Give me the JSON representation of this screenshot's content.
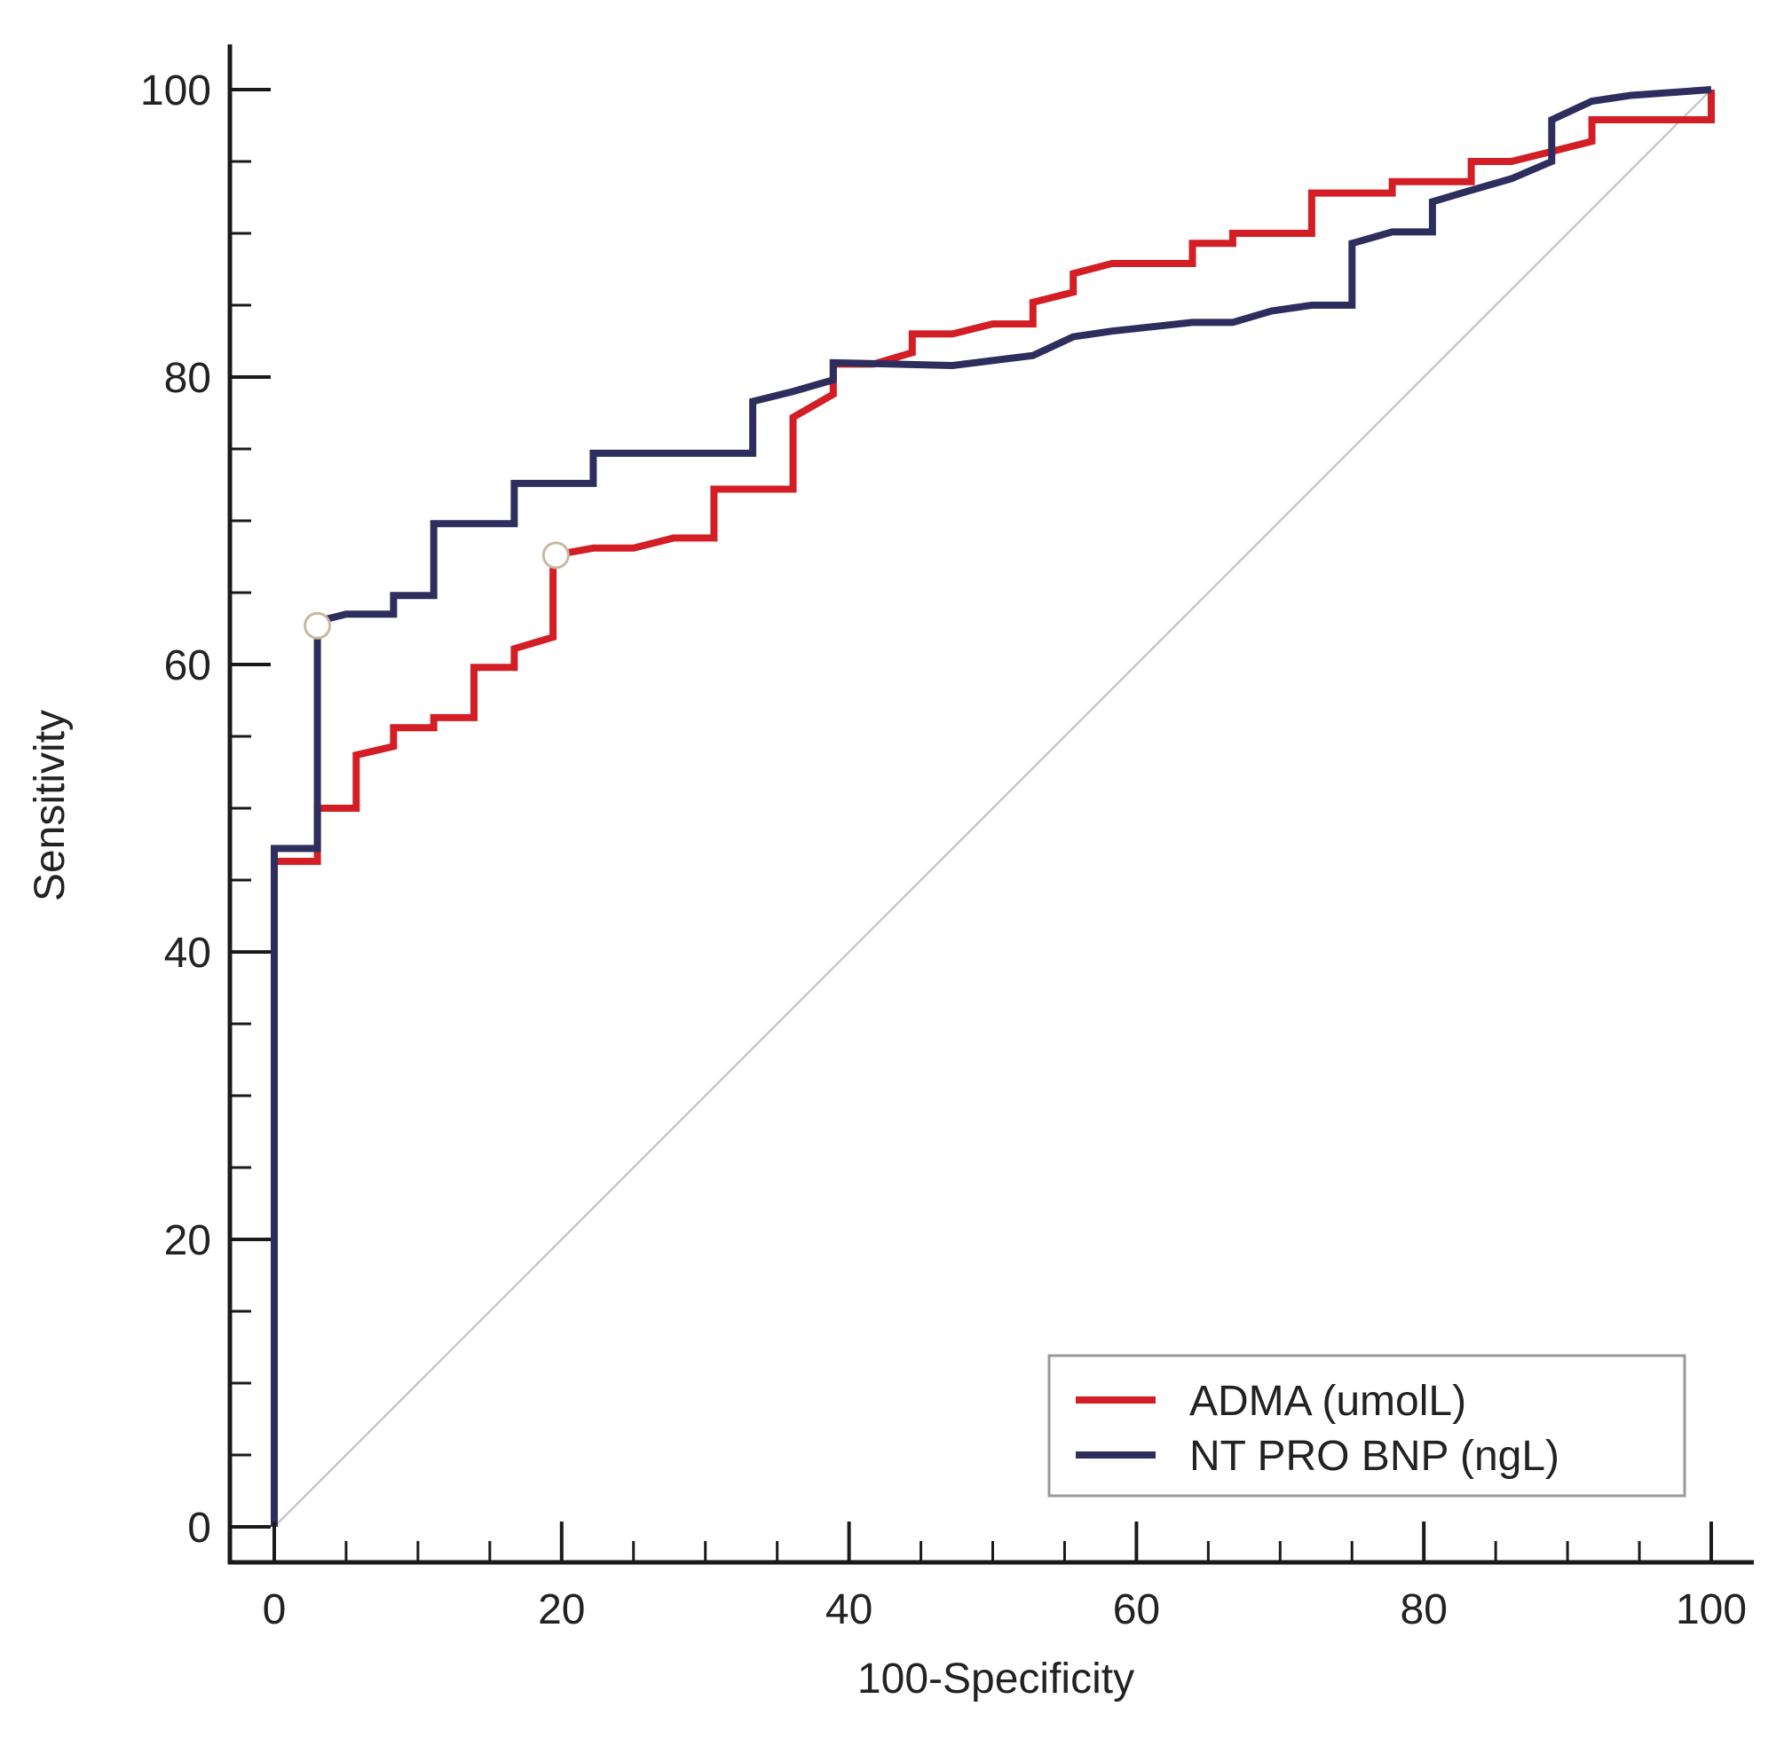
{
  "chart_data": {
    "type": "line",
    "title": "",
    "xlabel": "100-Specificity",
    "ylabel": "Sensitivity",
    "xlim": [
      0,
      100
    ],
    "ylim": [
      0,
      100
    ],
    "x_ticks": [
      "0",
      "20",
      "40",
      "60",
      "80",
      "100"
    ],
    "y_ticks": [
      "0",
      "20",
      "40",
      "60",
      "80",
      "100"
    ],
    "grid": false,
    "legend_position": "bottom-right",
    "reference_line": {
      "from": [
        0,
        0
      ],
      "to": [
        100,
        100
      ],
      "color": "#c8c8c8"
    },
    "series": [
      {
        "name": "ADMA (umolL)",
        "color": "#d21e24",
        "points": [
          [
            0,
            0
          ],
          [
            0,
            46.3
          ],
          [
            3,
            46.3
          ],
          [
            3,
            50
          ],
          [
            5.7,
            50
          ],
          [
            5.7,
            53.7
          ],
          [
            7,
            54
          ],
          [
            8.3,
            54.3
          ],
          [
            8.3,
            55.6
          ],
          [
            11.1,
            55.6
          ],
          [
            11.1,
            56.3
          ],
          [
            13.9,
            56.3
          ],
          [
            13.9,
            59.8
          ],
          [
            16.7,
            59.8
          ],
          [
            16.7,
            61.1
          ],
          [
            19.4,
            61.9
          ],
          [
            19.4,
            67.6
          ],
          [
            22.2,
            68.1
          ],
          [
            25,
            68.1
          ],
          [
            27.8,
            68.8
          ],
          [
            30.6,
            68.8
          ],
          [
            30.6,
            72.2
          ],
          [
            36.1,
            72.2
          ],
          [
            36.1,
            77.2
          ],
          [
            38.9,
            78.8
          ],
          [
            38.9,
            80.9
          ],
          [
            41.7,
            80.9
          ],
          [
            44.4,
            81.7
          ],
          [
            44.4,
            83
          ],
          [
            47.2,
            83
          ],
          [
            50,
            83.7
          ],
          [
            52.8,
            83.7
          ],
          [
            52.8,
            85.2
          ],
          [
            55.6,
            85.9
          ],
          [
            55.6,
            87.2
          ],
          [
            58.3,
            87.9
          ],
          [
            63.9,
            87.9
          ],
          [
            63.9,
            89.3
          ],
          [
            66.7,
            89.3
          ],
          [
            66.7,
            90
          ],
          [
            72.2,
            90
          ],
          [
            72.2,
            92.8
          ],
          [
            77.8,
            92.8
          ],
          [
            77.8,
            93.6
          ],
          [
            83.3,
            93.6
          ],
          [
            83.3,
            95
          ],
          [
            86.1,
            95
          ],
          [
            88.9,
            95.7
          ],
          [
            91.7,
            96.4
          ],
          [
            91.7,
            97.9
          ],
          [
            100,
            97.9
          ],
          [
            100,
            100
          ]
        ]
      },
      {
        "name": "NT PRO BNP (ngL)",
        "color": "#2e2e5e",
        "points": [
          [
            0,
            0
          ],
          [
            0,
            47.2
          ],
          [
            3,
            47.2
          ],
          [
            3,
            63
          ],
          [
            5,
            63.5
          ],
          [
            8.3,
            63.5
          ],
          [
            8.3,
            64.8
          ],
          [
            11.1,
            64.8
          ],
          [
            11.1,
            69.8
          ],
          [
            16.7,
            69.8
          ],
          [
            16.7,
            72.6
          ],
          [
            22.2,
            72.6
          ],
          [
            22.2,
            74.7
          ],
          [
            33.3,
            74.7
          ],
          [
            33.3,
            78.3
          ],
          [
            36.1,
            79
          ],
          [
            38.9,
            79.8
          ],
          [
            38.9,
            81
          ],
          [
            47.2,
            80.8
          ],
          [
            52.8,
            81.5
          ],
          [
            55.6,
            82.8
          ],
          [
            58.3,
            83.2
          ],
          [
            63.9,
            83.8
          ],
          [
            66.7,
            83.8
          ],
          [
            69.4,
            84.6
          ],
          [
            72.2,
            85
          ],
          [
            75,
            85
          ],
          [
            75,
            89.3
          ],
          [
            77.8,
            90.1
          ],
          [
            80.6,
            90.1
          ],
          [
            80.6,
            92.2
          ],
          [
            83.3,
            93
          ],
          [
            86.1,
            93.8
          ],
          [
            88.9,
            95
          ],
          [
            88.9,
            97.9
          ],
          [
            91.7,
            99.2
          ],
          [
            94.4,
            99.6
          ],
          [
            100,
            100
          ]
        ]
      }
    ],
    "markers": [
      {
        "series": "NT PRO BNP (ngL)",
        "x": 3,
        "y": 62.7
      },
      {
        "series": "ADMA (umolL)",
        "x": 19.6,
        "y": 67.6
      }
    ]
  }
}
